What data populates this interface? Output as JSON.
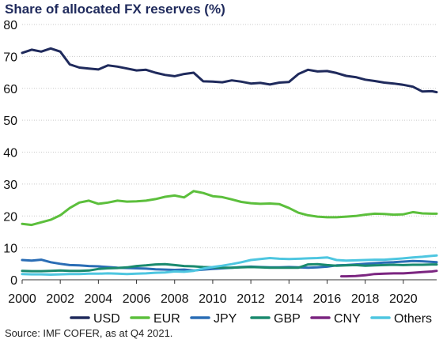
{
  "title": "Share of allocated FX reserves (%)",
  "source": "Source: IMF COFER, as at Q4 2021.",
  "chart_data": {
    "type": "line",
    "title": "Share of allocated FX reserves (%)",
    "xlabel": "",
    "ylabel": "",
    "xlim": [
      2000,
      2021.75
    ],
    "ylim": [
      0,
      80
    ],
    "y_ticks": [
      "0",
      "10",
      "20",
      "30",
      "40",
      "50",
      "60",
      "70",
      "80"
    ],
    "x_ticks": [
      "2000",
      "2002",
      "2004",
      "2006",
      "2008",
      "2010",
      "2012",
      "2014",
      "2016",
      "2018",
      "2020"
    ],
    "grid": "horizontal",
    "legend_position": "bottom",
    "series": [
      {
        "name": "USD",
        "color": "#1f2a5c",
        "x": [
          2000,
          2000.5,
          2001,
          2001.5,
          2002,
          2002.5,
          2003,
          2003.5,
          2004,
          2004.5,
          2005,
          2005.5,
          2006,
          2006.5,
          2007,
          2007.5,
          2008,
          2008.5,
          2009,
          2009.5,
          2010,
          2010.5,
          2011,
          2011.5,
          2012,
          2012.5,
          2013,
          2013.5,
          2014,
          2014.5,
          2015,
          2015.5,
          2016,
          2016.5,
          2017,
          2017.5,
          2018,
          2018.5,
          2019,
          2019.5,
          2020,
          2020.5,
          2021,
          2021.5,
          2021.75
        ],
        "y": [
          71.1,
          72.1,
          71.5,
          72.5,
          71.5,
          67.5,
          66.5,
          66.2,
          65.9,
          67.2,
          66.8,
          66.2,
          65.6,
          65.8,
          64.9,
          64.2,
          63.8,
          64.5,
          64.9,
          62.2,
          62.1,
          61.9,
          62.5,
          62.1,
          61.5,
          61.7,
          61.2,
          61.8,
          62.0,
          64.5,
          65.8,
          65.3,
          65.4,
          64.8,
          63.9,
          63.5,
          62.7,
          62.3,
          61.8,
          61.5,
          61.1,
          60.5,
          59.0,
          59.1,
          58.8
        ]
      },
      {
        "name": "EUR",
        "color": "#5cbf3c",
        "x": [
          2000,
          2000.5,
          2001,
          2001.5,
          2002,
          2002.5,
          2003,
          2003.5,
          2004,
          2004.5,
          2005,
          2005.5,
          2006,
          2006.5,
          2007,
          2007.5,
          2008,
          2008.5,
          2009,
          2009.5,
          2010,
          2010.5,
          2011,
          2011.5,
          2012,
          2012.5,
          2013,
          2013.5,
          2014,
          2014.5,
          2015,
          2015.5,
          2016,
          2016.5,
          2017,
          2017.5,
          2018,
          2018.5,
          2019,
          2019.5,
          2020,
          2020.5,
          2021,
          2021.5,
          2021.75
        ],
        "y": [
          17.5,
          17.2,
          18.0,
          18.8,
          20.2,
          22.5,
          24.2,
          24.8,
          23.8,
          24.2,
          24.8,
          24.5,
          24.6,
          24.8,
          25.3,
          26.0,
          26.4,
          25.8,
          27.8,
          27.2,
          26.2,
          25.9,
          25.2,
          24.4,
          24.0,
          23.8,
          23.9,
          23.7,
          22.5,
          21.0,
          20.2,
          19.8,
          19.6,
          19.6,
          19.8,
          20.0,
          20.4,
          20.7,
          20.6,
          20.4,
          20.5,
          21.2,
          20.8,
          20.7,
          20.7
        ]
      },
      {
        "name": "JPY",
        "color": "#2a6db5",
        "x": [
          2000,
          2000.5,
          2001,
          2001.5,
          2002,
          2002.5,
          2003,
          2003.5,
          2004,
          2004.5,
          2005,
          2005.5,
          2006,
          2006.5,
          2007,
          2007.5,
          2008,
          2008.5,
          2009,
          2009.5,
          2010,
          2010.5,
          2011,
          2011.5,
          2012,
          2012.5,
          2013,
          2013.5,
          2014,
          2014.5,
          2015,
          2015.5,
          2016,
          2016.5,
          2017,
          2017.5,
          2018,
          2018.5,
          2019,
          2019.5,
          2020,
          2020.5,
          2021,
          2021.5,
          2021.75
        ],
        "y": [
          6.2,
          6.0,
          6.3,
          5.5,
          5.0,
          4.6,
          4.5,
          4.3,
          4.2,
          4.0,
          3.8,
          3.7,
          3.6,
          3.5,
          3.3,
          3.2,
          3.1,
          3.2,
          2.9,
          3.2,
          3.4,
          3.6,
          3.8,
          4.0,
          4.1,
          4.0,
          3.9,
          3.9,
          4.0,
          3.9,
          3.8,
          3.9,
          4.1,
          4.5,
          4.6,
          4.8,
          5.0,
          5.2,
          5.4,
          5.5,
          5.7,
          5.9,
          5.8,
          5.6,
          5.5
        ]
      },
      {
        "name": "GBP",
        "color": "#1a8a6e",
        "x": [
          2000,
          2000.5,
          2001,
          2001.5,
          2002,
          2002.5,
          2003,
          2003.5,
          2004,
          2004.5,
          2005,
          2005.5,
          2006,
          2006.5,
          2007,
          2007.5,
          2008,
          2008.5,
          2009,
          2009.5,
          2010,
          2010.5,
          2011,
          2011.5,
          2012,
          2012.5,
          2013,
          2013.5,
          2014,
          2014.5,
          2015,
          2015.5,
          2016,
          2016.5,
          2017,
          2017.5,
          2018,
          2018.5,
          2019,
          2019.5,
          2020,
          2020.5,
          2021,
          2021.5,
          2021.75
        ],
        "y": [
          2.8,
          2.7,
          2.7,
          2.8,
          2.9,
          2.8,
          2.8,
          2.9,
          3.4,
          3.6,
          3.7,
          3.9,
          4.3,
          4.5,
          4.8,
          4.9,
          4.6,
          4.3,
          4.2,
          4.0,
          3.9,
          3.8,
          3.8,
          3.9,
          4.0,
          3.9,
          3.8,
          3.8,
          3.8,
          3.8,
          4.8,
          4.9,
          4.6,
          4.4,
          4.5,
          4.6,
          4.4,
          4.5,
          4.6,
          4.7,
          4.6,
          4.7,
          4.7,
          4.8,
          4.8
        ]
      },
      {
        "name": "CNY",
        "color": "#7b2580",
        "x": [
          2016.75,
          2017,
          2017.5,
          2018,
          2018.5,
          2019,
          2019.5,
          2020,
          2020.5,
          2021,
          2021.5,
          2021.75
        ],
        "y": [
          1.1,
          1.1,
          1.2,
          1.4,
          1.8,
          1.9,
          2.0,
          2.0,
          2.2,
          2.4,
          2.6,
          2.8
        ]
      },
      {
        "name": "Others",
        "color": "#4ec6e0",
        "x": [
          2000,
          2000.5,
          2001,
          2001.5,
          2002,
          2002.5,
          2003,
          2003.5,
          2004,
          2004.5,
          2005,
          2005.5,
          2006,
          2006.5,
          2007,
          2007.5,
          2008,
          2008.5,
          2009,
          2009.5,
          2010,
          2010.5,
          2011,
          2011.5,
          2012,
          2012.5,
          2013,
          2013.5,
          2014,
          2014.5,
          2015,
          2015.5,
          2016,
          2016.5,
          2017,
          2017.5,
          2018,
          2018.5,
          2019,
          2019.5,
          2020,
          2020.5,
          2021,
          2021.5,
          2021.75
        ],
        "y": [
          1.8,
          1.7,
          1.7,
          1.6,
          1.7,
          1.8,
          1.8,
          1.9,
          1.9,
          2.0,
          1.9,
          1.8,
          1.9,
          2.0,
          2.2,
          2.3,
          2.6,
          2.5,
          2.8,
          3.5,
          4.0,
          4.4,
          4.9,
          5.5,
          6.2,
          6.5,
          6.8,
          6.6,
          6.5,
          6.6,
          6.7,
          6.8,
          7.0,
          6.2,
          6.0,
          6.1,
          6.2,
          6.3,
          6.3,
          6.5,
          6.7,
          7.0,
          7.2,
          7.5,
          7.6
        ]
      }
    ]
  }
}
